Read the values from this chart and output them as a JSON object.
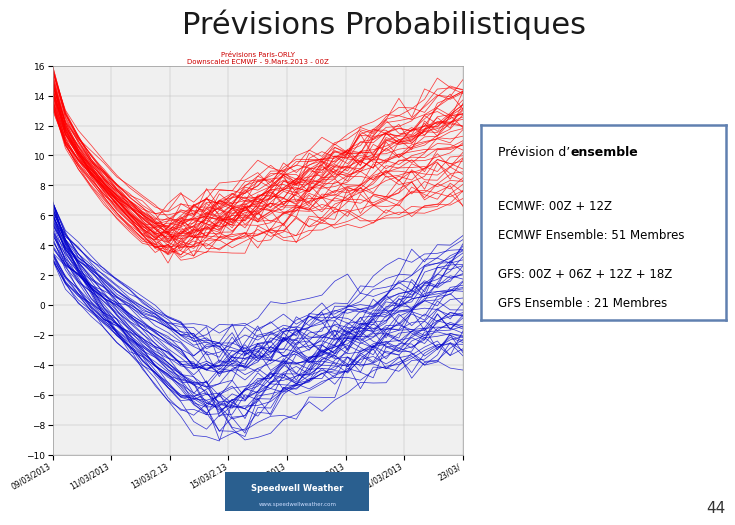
{
  "title": "Prévisions Probabilistiques",
  "title_fontsize": 22,
  "title_color": "#1a1a1a",
  "bg_color": "#ffffff",
  "slide_number": "44",
  "chart_bg": "#f0f0f0",
  "chart_title1": "Prévisions Paris-ORLY",
  "chart_title2": "Downscaled ECMWF - 9.Mars.2013 - 00Z",
  "chart_title_color": "#cc0000",
  "x_labels": [
    "09/03/2013",
    "11/03/2013",
    "13/03/2.13",
    "15/03/2.13",
    "17/03/2013",
    "19/03/2013",
    "21/03/2013",
    "23/03/"
  ],
  "y_ticks": [
    -10,
    -8,
    -6,
    -4,
    -2,
    0,
    2,
    4,
    6,
    8,
    10,
    12,
    14,
    16
  ],
  "red_color": "#ff0000",
  "blue_color": "#0000cc",
  "box_text_line1": "Prévision d’ensemble",
  "box_text_line2": "ECMWF: 00Z + 12Z",
  "box_text_line3": "ECMWF Ensemble: 51 Membres",
  "box_text_line4": "GFS: 00Z + 06Z + 12Z + 18Z",
  "box_text_line5": "GFS Ensemble : 21 Membres",
  "box_border_color": "#6080b0",
  "box_bg_color": "#ffffff",
  "num_red_lines": 51,
  "num_blue_lines": 51,
  "seed": 42,
  "logo_bg": "#2a5f8f",
  "logo_text": "Speedwell Weather",
  "logo_url": "www.speedwellweather.com"
}
